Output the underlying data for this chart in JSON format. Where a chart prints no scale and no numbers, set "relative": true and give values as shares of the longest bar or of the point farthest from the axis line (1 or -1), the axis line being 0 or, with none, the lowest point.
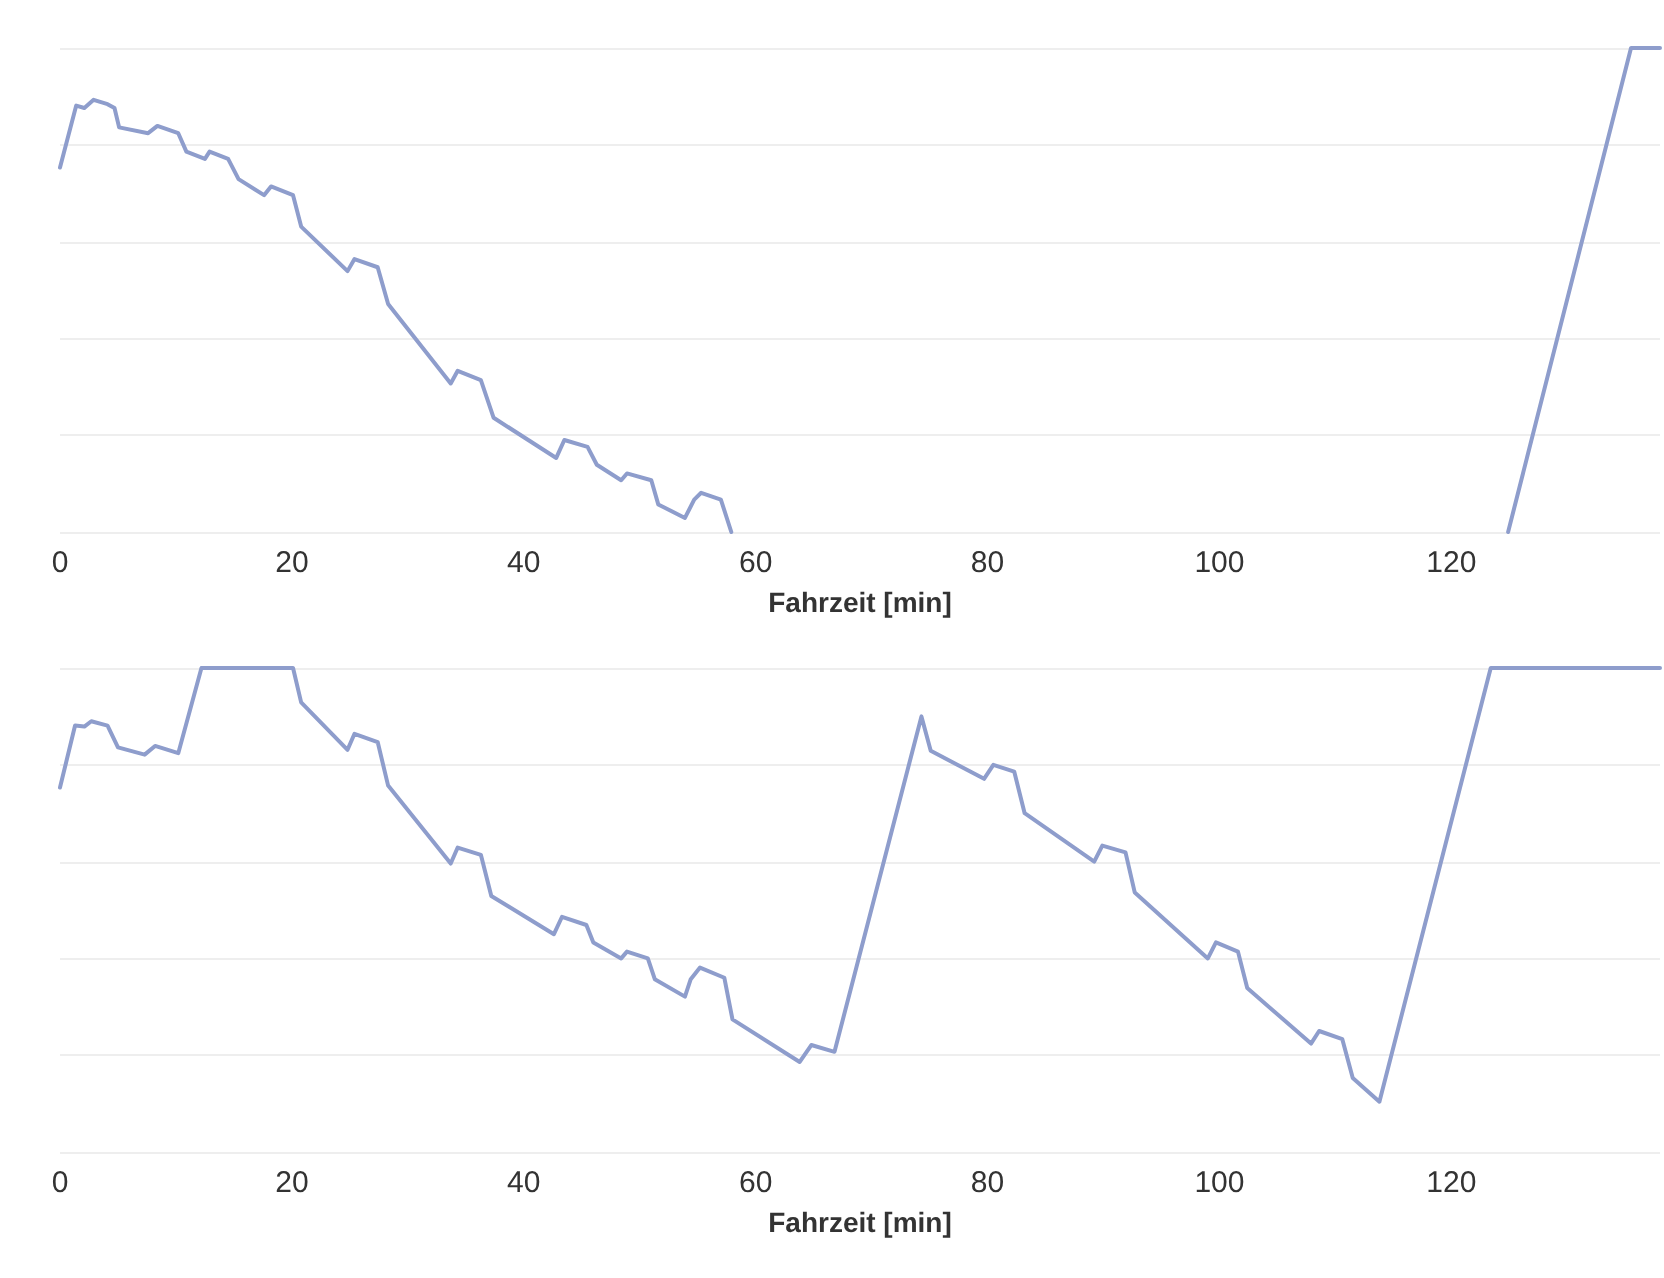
{
  "chart_data": [
    {
      "type": "line",
      "xlabel": "Fahrzeit [min]",
      "relative": true,
      "xlim": [
        0,
        138
      ],
      "xticks": [
        0,
        20,
        40,
        60,
        80,
        100,
        120
      ],
      "grid": "y",
      "marker": "none",
      "line_style": "solid",
      "series": [
        {
          "color": "#8e9dcc",
          "x": [
            0,
            1.4,
            2.1,
            2.9,
            4.1,
            4.7,
            5.1,
            7.6,
            8.4,
            10.2,
            10.9,
            12.5,
            12.9,
            14.5,
            15.4,
            17.6,
            18.2,
            20.1,
            20.8,
            24.8,
            25.4,
            27.4,
            28.3,
            33.7,
            34.3,
            36.3,
            37.4,
            42.8,
            43.5,
            45.5,
            46.3,
            48.4,
            48.9,
            51.0,
            51.6,
            53.9,
            54.7,
            55.3,
            57.0,
            57.9,
            90,
            124.9,
            135.5,
            138
          ],
          "values": [
            0.753,
            0.881,
            0.876,
            0.893,
            0.884,
            0.876,
            0.836,
            0.824,
            0.839,
            0.824,
            0.786,
            0.771,
            0.786,
            0.771,
            0.729,
            0.696,
            0.714,
            0.696,
            0.631,
            0.539,
            0.564,
            0.547,
            0.471,
            0.307,
            0.333,
            0.314,
            0.236,
            0.153,
            0.19,
            0.176,
            0.139,
            0.107,
            0.121,
            0.107,
            0.057,
            0.029,
            0.067,
            0.081,
            0.067,
            0,
            null,
            0,
            1,
            1
          ]
        }
      ]
    },
    {
      "type": "line",
      "xlabel": "Fahrzeit [min]",
      "relative": true,
      "xlim": [
        0,
        138
      ],
      "xticks": [
        0,
        20,
        40,
        60,
        80,
        100,
        120
      ],
      "grid": "y",
      "marker": "none",
      "line_style": "solid",
      "series": [
        {
          "color": "#8e9dcc",
          "x": [
            0,
            1.3,
            2.1,
            2.7,
            4.1,
            5.0,
            7.3,
            8.2,
            10.2,
            12.2,
            20.1,
            20.8,
            24.8,
            25.4,
            27.4,
            28.3,
            33.7,
            34.3,
            36.3,
            37.2,
            42.6,
            43.3,
            45.4,
            46.0,
            48.4,
            48.9,
            50.7,
            51.3,
            53.9,
            54.4,
            55.2,
            57.3,
            58.0,
            63.8,
            64.8,
            66.8,
            74.3,
            75.1,
            79.7,
            80.5,
            82.3,
            83.2,
            89.2,
            89.9,
            91.9,
            92.7,
            99.0,
            99.7,
            101.6,
            102.4,
            107.9,
            108.6,
            110.6,
            111.5,
            113.8,
            123.4,
            138
          ],
          "values": [
            0.753,
            0.881,
            0.879,
            0.89,
            0.881,
            0.836,
            0.821,
            0.839,
            0.824,
            1,
            1,
            0.929,
            0.831,
            0.864,
            0.847,
            0.757,
            0.596,
            0.629,
            0.614,
            0.529,
            0.45,
            0.486,
            0.469,
            0.433,
            0.4,
            0.414,
            0.4,
            0.357,
            0.321,
            0.357,
            0.381,
            0.36,
            0.274,
            0.186,
            0.221,
            0.207,
            0.9,
            0.829,
            0.771,
            0.8,
            0.786,
            0.7,
            0.6,
            0.633,
            0.619,
            0.536,
            0.4,
            0.433,
            0.414,
            0.339,
            0.224,
            0.25,
            0.233,
            0.153,
            0.104,
            1,
            1
          ]
        }
      ]
    }
  ]
}
